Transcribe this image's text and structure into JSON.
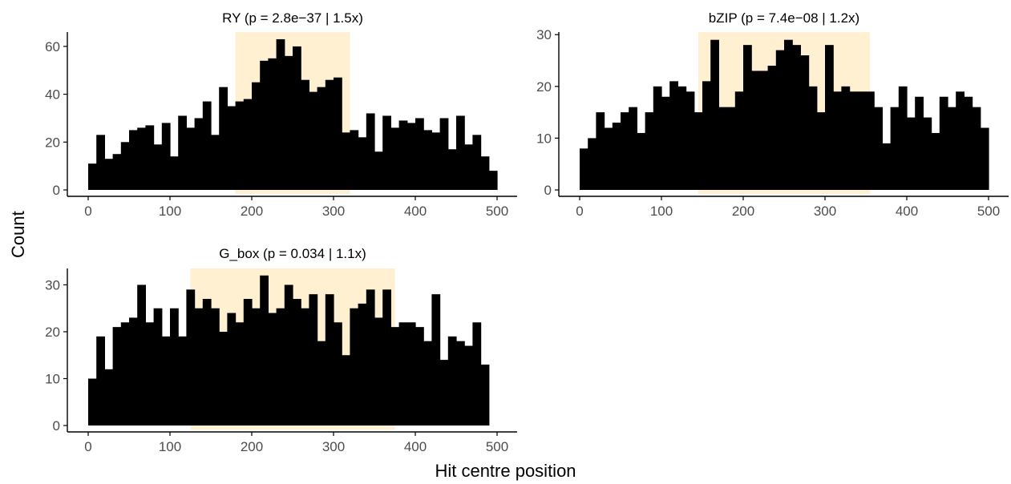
{
  "figure": {
    "xlabel": "Hit centre position",
    "ylabel": "Count",
    "colors": {
      "bar": "#000000",
      "highlight": "#FEF0D0",
      "axis": "#000000",
      "tick_label": "#4d4d4d"
    }
  },
  "chart_data": [
    {
      "type": "bar",
      "title": "RY  (p = 2.8e−37 | 1.5x)",
      "bin_width": 10,
      "bin_starts": [
        0,
        10,
        20,
        30,
        40,
        50,
        60,
        70,
        80,
        90,
        100,
        110,
        120,
        130,
        140,
        150,
        160,
        170,
        180,
        190,
        200,
        210,
        220,
        230,
        240,
        250,
        260,
        270,
        280,
        290,
        300,
        310,
        320,
        330,
        340,
        350,
        360,
        370,
        380,
        390,
        400,
        410,
        420,
        430,
        440,
        450,
        460,
        470,
        480,
        490
      ],
      "values": [
        11,
        23,
        13,
        15,
        20,
        25,
        26,
        27,
        19,
        28,
        14,
        31,
        26,
        30,
        37,
        23,
        43,
        35,
        37,
        38,
        45,
        54,
        55,
        63,
        56,
        60,
        46,
        41,
        43,
        46,
        47,
        24,
        25,
        22,
        32,
        16,
        31,
        26,
        29,
        28,
        30,
        25,
        24,
        30,
        17,
        31,
        19,
        23,
        14,
        8
      ],
      "highlight": [
        180,
        320
      ],
      "xlim": [
        0,
        500
      ],
      "xticks": [
        0,
        100,
        200,
        300,
        400,
        500
      ],
      "ylim": [
        0,
        66
      ],
      "yticks": [
        0,
        20,
        40,
        60
      ]
    },
    {
      "type": "bar",
      "title": "bZIP  (p = 7.4e−08 | 1.2x)",
      "bin_width": 10,
      "bin_starts": [
        0,
        10,
        20,
        30,
        40,
        50,
        60,
        70,
        80,
        90,
        100,
        110,
        120,
        130,
        140,
        150,
        160,
        170,
        180,
        190,
        200,
        210,
        220,
        230,
        240,
        250,
        260,
        270,
        280,
        290,
        300,
        310,
        320,
        330,
        340,
        350,
        360,
        370,
        380,
        390,
        400,
        410,
        420,
        430,
        440,
        450,
        460,
        470,
        480,
        490
      ],
      "values": [
        8,
        10,
        15,
        12,
        13,
        15,
        16,
        11,
        15,
        20,
        18,
        21,
        20,
        19,
        15,
        21,
        29,
        16,
        16,
        19,
        28,
        23,
        23,
        24,
        27,
        29,
        28,
        26,
        20,
        15,
        28,
        19,
        20,
        19,
        19,
        19,
        16,
        9,
        16,
        20,
        14,
        18,
        14,
        11,
        18,
        16,
        19,
        18,
        16,
        12
      ],
      "highlight": [
        145,
        355
      ],
      "xlim": [
        0,
        500
      ],
      "xticks": [
        0,
        100,
        200,
        300,
        400,
        500
      ],
      "ylim": [
        0,
        30.5
      ],
      "yticks": [
        0,
        10,
        20,
        30
      ]
    },
    {
      "type": "bar",
      "title": "G_box  (p = 0.034 | 1.1x)",
      "bin_width": 10,
      "bin_starts": [
        0,
        10,
        20,
        30,
        40,
        50,
        60,
        70,
        80,
        90,
        100,
        110,
        120,
        130,
        140,
        150,
        160,
        170,
        180,
        190,
        200,
        210,
        220,
        230,
        240,
        250,
        260,
        270,
        280,
        290,
        300,
        310,
        320,
        330,
        340,
        350,
        360,
        370,
        380,
        390,
        400,
        410,
        420,
        430,
        440,
        450,
        460,
        470,
        480,
        490
      ],
      "values": [
        10,
        19,
        12,
        21,
        22,
        23,
        30,
        22,
        25,
        19,
        25,
        19,
        29,
        25,
        27,
        25,
        20,
        24,
        22,
        27,
        25,
        32,
        24,
        25,
        30,
        27,
        25,
        28,
        18,
        28,
        22,
        15,
        25,
        26,
        29,
        23,
        29,
        21,
        22,
        22,
        21,
        18,
        28,
        14,
        19,
        18,
        17,
        22,
        13,
        0
      ],
      "highlight": [
        125,
        375
      ],
      "xlim": [
        0,
        500
      ],
      "xticks": [
        0,
        100,
        200,
        300,
        400,
        500
      ],
      "ylim": [
        0,
        33.5
      ],
      "yticks": [
        0,
        10,
        20,
        30
      ]
    }
  ]
}
